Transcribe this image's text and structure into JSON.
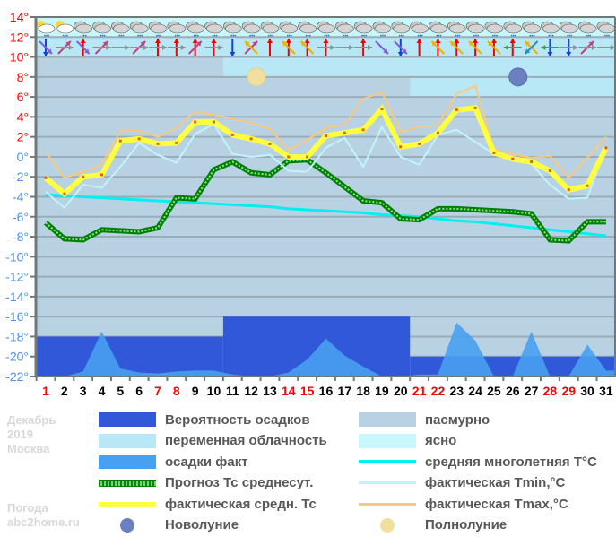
{
  "meta": {
    "month": "Декабрь",
    "year": "2019",
    "city": "Москва",
    "site_line1": "Погода",
    "site_line2": "abc2home.ru"
  },
  "colors": {
    "precip_prob": "#3058d8",
    "variable_cloud": "#b8e8f6",
    "precip_fact": "#48a0f0",
    "forecast_mean": "#009000",
    "actual_mean": "#ffff40",
    "overcast": "#b8d2e4",
    "clear": "#c8f8fc",
    "climate_mean": "#00f0f0",
    "tmin": "#c0f4f8",
    "tmax": "#f8c880",
    "new_moon": "#6a80c0",
    "full_moon": "#f0e0a0",
    "axis_pos": "#ff0000",
    "axis_neg": "#4a90e8",
    "weekend": "#ff0000",
    "weekday": "#000000"
  },
  "legend": [
    {
      "key": "precip_prob",
      "label": "Вероятность осадков",
      "type": "box",
      "col": 0
    },
    {
      "key": "overcast",
      "label": "пасмурно",
      "type": "box",
      "col": 1
    },
    {
      "key": "variable_cloud",
      "label": "переменная облачность",
      "type": "box",
      "col": 0
    },
    {
      "key": "clear",
      "label": "ясно",
      "type": "box",
      "col": 1
    },
    {
      "key": "precip_fact",
      "label": "осадки факт",
      "type": "box",
      "col": 0
    },
    {
      "key": "climate_mean",
      "label": "средняя многолетняя T°C",
      "type": "line",
      "col": 1
    },
    {
      "key": "forecast_mean",
      "label": "Прогноз Тс среднесут.",
      "type": "dots",
      "col": 0
    },
    {
      "key": "tmin",
      "label": "фактическая Tmin,°C",
      "type": "thin",
      "col": 1
    },
    {
      "key": "actual_mean",
      "label": "фактическая средн. Тс",
      "type": "thick",
      "col": 0
    },
    {
      "key": "tmax",
      "label": "фактическая Tmax,°C",
      "type": "thin",
      "col": 1
    },
    {
      "key": "new_moon",
      "label": "Новолуние",
      "type": "moon",
      "col": 0
    },
    {
      "key": "full_moon",
      "label": "Полнолуние",
      "type": "moon",
      "col": 1
    }
  ],
  "chart_data": {
    "type": "line",
    "title": "Декабрь 2019 Москва",
    "xlabel": "",
    "ylabel": "°C",
    "ylim": [
      -22,
      14
    ],
    "yticks": [
      14,
      12,
      10,
      8,
      6,
      4,
      2,
      0,
      -2,
      -4,
      -6,
      -8,
      -10,
      -12,
      -14,
      -16,
      -18,
      -20,
      -22
    ],
    "grid": true,
    "x": [
      1,
      2,
      3,
      4,
      5,
      6,
      7,
      8,
      9,
      10,
      11,
      12,
      13,
      14,
      15,
      16,
      17,
      18,
      19,
      20,
      21,
      22,
      23,
      24,
      25,
      26,
      27,
      28,
      29,
      30,
      31
    ],
    "weekend_days": [
      1,
      7,
      8,
      14,
      15,
      21,
      22,
      28,
      29
    ],
    "series": [
      {
        "name": "фактическая средн. Тс",
        "values": [
          -2.1,
          -3.7,
          -2.0,
          -1.8,
          1.6,
          1.8,
          1.3,
          1.4,
          3.5,
          3.5,
          2.2,
          1.8,
          1.3,
          0.0,
          0.0,
          2.1,
          2.4,
          2.7,
          4.8,
          1.0,
          1.3,
          2.4,
          4.7,
          4.9,
          0.4,
          -0.2,
          -0.5,
          -1.4,
          -3.3,
          -2.9,
          0.9
        ]
      },
      {
        "name": "фактическая Tmax,°C",
        "values": [
          0.5,
          -2.1,
          -1.5,
          -0.8,
          2.6,
          2.6,
          2.0,
          2.9,
          4.5,
          4.2,
          3.8,
          3.4,
          2.8,
          0.7,
          1.7,
          2.9,
          3.2,
          5.8,
          6.5,
          2.5,
          3.0,
          3.2,
          6.3,
          7.1,
          0.8,
          0.3,
          -0.1,
          0.1,
          -2.1,
          -0.1,
          2.0
        ]
      },
      {
        "name": "фактическая Tmin,°C",
        "values": [
          -3.5,
          -5.1,
          -2.8,
          -3.1,
          -1.0,
          1.4,
          0.2,
          -0.6,
          2.3,
          3.3,
          0.3,
          0.0,
          0.2,
          -1.4,
          -1.5,
          0.9,
          1.9,
          -1.0,
          3.0,
          0.0,
          -0.8,
          2.2,
          2.7,
          1.5,
          0.3,
          -0.4,
          -0.7,
          -2.8,
          -4.2,
          -4.1,
          1.0
        ]
      },
      {
        "name": "Прогноз Тс среднесут.",
        "values": [
          -6.6,
          -8.2,
          -8.3,
          -7.3,
          -7.4,
          -7.5,
          -7.1,
          -4.1,
          -4.2,
          -1.3,
          -0.5,
          -1.6,
          -1.8,
          -0.4,
          -0.3,
          -1.6,
          -3.0,
          -4.4,
          -4.6,
          -6.2,
          -6.3,
          -5.2,
          -5.2,
          -5.3,
          -5.4,
          -5.5,
          -5.7,
          -8.3,
          -8.4,
          -6.5,
          -6.5
        ]
      },
      {
        "name": "средняя многолетняя T°C",
        "values": [
          -3.8,
          -3.9,
          -4.0,
          -4.1,
          -4.2,
          -4.3,
          -4.4,
          -4.5,
          -4.6,
          -4.7,
          -4.8,
          -4.9,
          -5.0,
          -5.2,
          -5.3,
          -5.4,
          -5.5,
          -5.6,
          -5.8,
          -5.9,
          -6.0,
          -6.2,
          -6.4,
          -6.5,
          -6.7,
          -6.9,
          -7.1,
          -7.3,
          -7.5,
          -7.7,
          -7.9
        ]
      },
      {
        "name": "осадки факт",
        "values": [
          -22.0,
          -22.0,
          -21.5,
          -17.5,
          -21.2,
          -21.6,
          -21.7,
          -21.5,
          -21.4,
          -21.4,
          -21.8,
          -22.0,
          -22.0,
          -21.6,
          -20.3,
          -18.2,
          -19.9,
          -21.0,
          -22.0,
          -22.0,
          -21.8,
          -21.8,
          -16.6,
          -18.4,
          -22.0,
          -22.0,
          -17.5,
          -22.0,
          -22.0,
          -18.8,
          -21.4
        ]
      }
    ],
    "precip_probability_bands": [
      {
        "from_day": 1,
        "to_day": 10,
        "level": -18
      },
      {
        "from_day": 11,
        "to_day": 20,
        "level": -16
      },
      {
        "from_day": 21,
        "to_day": 31,
        "level": -20
      }
    ],
    "cloud_bands": [
      {
        "from_day": 1,
        "to_day": 10,
        "variable_to": 10
      },
      {
        "from_day": 11,
        "to_day": 20,
        "variable_to": 8
      },
      {
        "from_day": 21,
        "to_day": 31,
        "variable_to": 6
      }
    ],
    "moon_phases": [
      {
        "phase": "full",
        "label": "Полнолуние",
        "day": 12,
        "temp": 8
      },
      {
        "phase": "new",
        "label": "Новолуние",
        "day": 26,
        "temp": 8
      }
    ],
    "weather_icons": [
      "partly-cloudy-snow",
      "partly-cloudy-snow",
      "cloud-snow",
      "cloud-snow",
      "cloud-snow",
      "cloud-snow",
      "cloud-snow",
      "cloud-snow",
      "cloud-snow",
      "cloud-snow",
      "cloud-snow",
      "cloud-snow",
      "cloud-snow",
      "cloud-snow",
      "cloud-snow",
      "cloud-snow",
      "cloud-snow",
      "cloud-snow",
      "cloud-snow",
      "cloud-snow",
      "cloud-snow",
      "cloud-snow",
      "cloud-snow",
      "cloud-snow",
      "cloud-snow",
      "cloud-snow",
      "cloud-snow",
      "cloud-snow",
      "cloud-snow",
      "cloud-snow",
      "cloud-snow"
    ],
    "wind_arrows": [
      [
        {
          "dir": "down",
          "color": "#1040e0"
        },
        {
          "dir": "down-right",
          "color": "#8060e0"
        }
      ],
      [
        {
          "dir": "up-right",
          "color": "#c04080"
        },
        {
          "dir": "right",
          "color": "#909090"
        }
      ],
      [
        {
          "dir": "up",
          "color": "#f00000"
        },
        {
          "dir": "down-right",
          "color": "#8060e0"
        }
      ],
      [
        {
          "dir": "up-right",
          "color": "#c04080"
        },
        {
          "dir": "right",
          "color": "#909090"
        }
      ],
      [
        {
          "dir": "right",
          "color": "#909090"
        }
      ],
      [
        {
          "dir": "up-right",
          "color": "#c04080"
        },
        {
          "dir": "right",
          "color": "#909090"
        }
      ],
      [
        {
          "dir": "up",
          "color": "#f00000"
        },
        {
          "dir": "right",
          "color": "#909090"
        }
      ],
      [
        {
          "dir": "up",
          "color": "#f00000"
        },
        {
          "dir": "right",
          "color": "#909090"
        }
      ],
      [
        {
          "dir": "up",
          "color": "#f00000"
        },
        {
          "dir": "up-right",
          "color": "#c04080"
        }
      ],
      [
        {
          "dir": "up",
          "color": "#f00000"
        },
        {
          "dir": "right",
          "color": "#909090"
        }
      ],
      [
        {
          "dir": "down",
          "color": "#1040e0"
        }
      ],
      [
        {
          "dir": "up-right",
          "color": "#c04080"
        },
        {
          "dir": "up-left",
          "color": "#f0b000"
        }
      ],
      [
        {
          "dir": "up",
          "color": "#f00000"
        }
      ],
      [
        {
          "dir": "up",
          "color": "#f00000"
        },
        {
          "dir": "up-left",
          "color": "#f0b000"
        }
      ],
      [
        {
          "dir": "up",
          "color": "#f00000"
        },
        {
          "dir": "up-left",
          "color": "#f0b000"
        }
      ],
      [
        {
          "dir": "up",
          "color": "#f00000"
        },
        {
          "dir": "right",
          "color": "#909090"
        }
      ],
      [
        {
          "dir": "right",
          "color": "#909090"
        }
      ],
      [
        {
          "dir": "up",
          "color": "#f00000"
        },
        {
          "dir": "right",
          "color": "#909090"
        }
      ],
      [
        {
          "dir": "down-right",
          "color": "#8060e0"
        }
      ],
      [
        {
          "dir": "down",
          "color": "#1040e0"
        },
        {
          "dir": "down-right",
          "color": "#8060e0"
        }
      ],
      [
        {
          "dir": "up",
          "color": "#f00000"
        }
      ],
      [
        {
          "dir": "up",
          "color": "#f00000"
        },
        {
          "dir": "up-left",
          "color": "#f0b000"
        }
      ],
      [
        {
          "dir": "up",
          "color": "#f00000"
        },
        {
          "dir": "up-left",
          "color": "#f0b000"
        }
      ],
      [
        {
          "dir": "up",
          "color": "#f00000"
        },
        {
          "dir": "up-left",
          "color": "#f0b000"
        }
      ],
      [
        {
          "dir": "up",
          "color": "#f00000"
        },
        {
          "dir": "up-left",
          "color": "#f0b000"
        }
      ],
      [
        {
          "dir": "up",
          "color": "#f00000"
        },
        {
          "dir": "left",
          "color": "#40a040"
        }
      ],
      [
        {
          "dir": "up-left",
          "color": "#f0b000"
        },
        {
          "dir": "down-left",
          "color": "#2090c0"
        }
      ],
      [
        {
          "dir": "down",
          "color": "#1040e0"
        },
        {
          "dir": "left",
          "color": "#40a040"
        }
      ],
      [
        {
          "dir": "down",
          "color": "#1040e0"
        },
        {
          "dir": "right",
          "color": "#909090"
        }
      ],
      [
        {
          "dir": "up-right",
          "color": "#c04080"
        },
        {
          "dir": "right",
          "color": "#909090"
        }
      ],
      [
        {
          "dir": "right",
          "color": "#909090"
        }
      ]
    ]
  }
}
